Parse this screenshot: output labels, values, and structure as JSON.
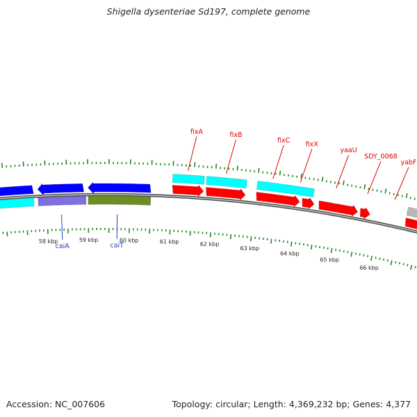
{
  "title": "Shigella dysenteriae Sd197, complete genome",
  "footer": {
    "accession": "Accession: NC_007606",
    "summary": "Topology: circular; Length: 4,369,232 bp; Genes: 4,377"
  },
  "colors": {
    "forward_cds": "#ff0000",
    "reverse_cds": "#0000ff",
    "forward_feature": "#00ffff",
    "reverse_feature": "#7f6fdf",
    "olive_feature": "#6b8e23",
    "grey_feature": "#b8b8b8",
    "tick_green": "#1a8a1a",
    "backbone": "#888888",
    "label_red": "#dd0000",
    "label_blue": "#1f3fc2"
  },
  "kbp_labels": [
    {
      "text": "58 kbp",
      "kb": 58
    },
    {
      "text": "59 kbp",
      "kb": 59
    },
    {
      "text": "60 kbp",
      "kb": 60
    },
    {
      "text": "61 kbp",
      "kb": 61
    },
    {
      "text": "62 kbp",
      "kb": 62
    },
    {
      "text": "63 kbp",
      "kb": 63
    },
    {
      "text": "64 kbp",
      "kb": 64
    },
    {
      "text": "65 kbp",
      "kb": 65
    },
    {
      "text": "66 kbp",
      "kb": 66
    }
  ],
  "features": [
    {
      "track": "reverse-outer",
      "type": "reverse",
      "start_kb": 56.75,
      "end_kb": 57.7,
      "arrow": true
    },
    {
      "track": "reverse-outer",
      "type": "reverse",
      "start_kb": 57.8,
      "end_kb": 58.9,
      "arrow": true
    },
    {
      "track": "reverse-outer",
      "type": "reverse",
      "start_kb": 59.0,
      "end_kb": 60.5,
      "arrow": true
    },
    {
      "track": "reverse-inner",
      "type": "forward_feature",
      "start_kb": 56.75,
      "end_kb": 57.7,
      "arrow": false
    },
    {
      "track": "reverse-inner",
      "type": "reverse_feature",
      "start_kb": 57.8,
      "end_kb": 58.95,
      "arrow": false
    },
    {
      "track": "reverse-inner",
      "type": "olive_feature",
      "start_kb": 59.0,
      "end_kb": 60.5,
      "arrow": false
    },
    {
      "track": "forward-outer",
      "type": "forward_feature",
      "start_kb": 61.0,
      "end_kb": 61.75,
      "arrow": false
    },
    {
      "track": "forward-outer",
      "type": "forward_feature",
      "start_kb": 61.8,
      "end_kb": 62.75,
      "arrow": false
    },
    {
      "track": "forward-outer",
      "type": "forward_feature",
      "start_kb": 63.0,
      "end_kb": 64.35,
      "arrow": false
    },
    {
      "track": "forward-outer",
      "type": "grey_feature",
      "start_kb": 66.6,
      "end_kb": 67.2,
      "arrow": false
    },
    {
      "track": "forward-outer",
      "type": "reverse_feature",
      "start_kb": 67.2,
      "end_kb": 67.6,
      "arrow": false
    },
    {
      "track": "forward-inner",
      "type": "forward",
      "start_kb": 61.0,
      "end_kb": 61.75,
      "arrow": true
    },
    {
      "track": "forward-inner",
      "type": "forward",
      "start_kb": 61.8,
      "end_kb": 62.75,
      "arrow": true
    },
    {
      "track": "forward-inner",
      "type": "forward",
      "start_kb": 63.0,
      "end_kb": 64.05,
      "arrow": true
    },
    {
      "track": "forward-inner",
      "type": "forward",
      "start_kb": 64.1,
      "end_kb": 64.4,
      "arrow": true
    },
    {
      "track": "forward-inner",
      "type": "forward",
      "start_kb": 64.5,
      "end_kb": 65.45,
      "arrow": true
    },
    {
      "track": "forward-inner",
      "type": "forward",
      "start_kb": 65.5,
      "end_kb": 65.75,
      "arrow": true
    },
    {
      "track": "forward-inner",
      "type": "forward",
      "start_kb": 66.6,
      "end_kb": 67.2,
      "arrow": true
    },
    {
      "track": "forward-inner",
      "type": "forward",
      "start_kb": 67.2,
      "end_kb": 67.6,
      "arrow": false
    }
  ],
  "gene_labels": [
    {
      "text": "fixA",
      "kb": 61.35,
      "side": "top",
      "color": "red"
    },
    {
      "text": "fixB",
      "kb": 62.25,
      "side": "top",
      "color": "red"
    },
    {
      "text": "fixC",
      "kb": 63.35,
      "side": "top",
      "color": "red"
    },
    {
      "text": "fixX",
      "kb": 64.0,
      "side": "top",
      "color": "red"
    },
    {
      "text": "yaaU",
      "kb": 64.85,
      "side": "top",
      "color": "red"
    },
    {
      "text": "SDY_0068",
      "kb": 65.6,
      "side": "top",
      "color": "red"
    },
    {
      "text": "yabF",
      "kb": 66.25,
      "side": "top",
      "color": "red"
    },
    {
      "text": "caiA",
      "kb": 58.35,
      "side": "bottom",
      "color": "blue"
    },
    {
      "text": "caiT",
      "kb": 59.7,
      "side": "bottom",
      "color": "blue"
    }
  ]
}
